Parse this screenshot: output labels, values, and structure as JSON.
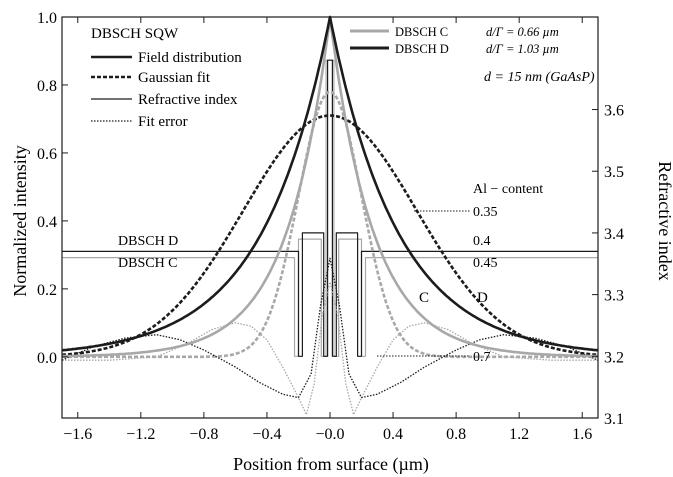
{
  "chart_data": {
    "type": "line",
    "title": "",
    "xlabel": "Position from surface (µm)",
    "ylabel": "Normalized intensity",
    "y2label": "Refractive index",
    "xlim": [
      -1.7,
      1.7
    ],
    "ylim": [
      -0.18,
      1.0
    ],
    "y2lim": [
      3.1,
      3.75
    ],
    "xticks": [
      -1.6,
      -1.2,
      -0.8,
      -0.4,
      0.0,
      0.4,
      0.8,
      1.2,
      1.6
    ],
    "xtick_labels": [
      "−1.6",
      "−1.2",
      "−0.8",
      "−0.4",
      "−0.0",
      "0.4",
      "0.8",
      "1.2",
      "1.6"
    ],
    "yticks": [
      0.0,
      0.2,
      0.4,
      0.6,
      0.8,
      1.0
    ],
    "ytick_labels": [
      "0.0",
      "0.2",
      "0.4",
      "0.6",
      "0.8",
      "1.0"
    ],
    "y2ticks": [
      3.1,
      3.2,
      3.3,
      3.4,
      3.5,
      3.6
    ],
    "y2tick_labels": [
      "3.1",
      "3.2",
      "3.3",
      "3.4",
      "3.5",
      "3.6"
    ],
    "grid": false,
    "colors": {
      "C": "#a8a8a8",
      "D": "#1c1c1c"
    },
    "series": [
      {
        "name": "DBSCH C",
        "kind": "field",
        "color_key": "C",
        "decay_um": 0.275,
        "peak": 1.0,
        "x_range": [
          -1.7,
          1.7
        ]
      },
      {
        "name": "DBSCH D",
        "kind": "field",
        "color_key": "D",
        "decay_um": 0.43,
        "peak": 1.0,
        "x_range": [
          -1.7,
          1.7
        ]
      },
      {
        "name": "DBSCH C",
        "kind": "gaussian_fit",
        "color_key": "C",
        "amplitude": 0.78,
        "sigma_um": 0.2,
        "x_range": [
          -1.7,
          1.7
        ]
      },
      {
        "name": "DBSCH D",
        "kind": "gaussian_fit",
        "color_key": "D",
        "amplitude": 0.71,
        "sigma_um": 0.55,
        "x_range": [
          -1.7,
          1.7
        ]
      },
      {
        "name": "DBSCH C",
        "kind": "fit_error",
        "color_key": "C",
        "points": [
          [
            -1.7,
            -0.01
          ],
          [
            -1.4,
            -0.01
          ],
          [
            -1.1,
            0.0
          ],
          [
            -0.9,
            0.04
          ],
          [
            -0.75,
            0.08
          ],
          [
            -0.6,
            0.1
          ],
          [
            -0.5,
            0.09
          ],
          [
            -0.4,
            0.05
          ],
          [
            -0.3,
            -0.03
          ],
          [
            -0.2,
            -0.12
          ],
          [
            -0.15,
            -0.17
          ],
          [
            -0.1,
            -0.08
          ],
          [
            -0.05,
            0.12
          ],
          [
            0.0,
            0.22
          ],
          [
            0.05,
            0.12
          ],
          [
            0.1,
            -0.08
          ],
          [
            0.15,
            -0.17
          ],
          [
            0.2,
            -0.12
          ],
          [
            0.3,
            -0.03
          ],
          [
            0.4,
            0.05
          ],
          [
            0.5,
            0.09
          ],
          [
            0.6,
            0.1
          ],
          [
            0.75,
            0.08
          ],
          [
            0.9,
            0.04
          ],
          [
            1.1,
            0.0
          ],
          [
            1.4,
            -0.01
          ],
          [
            1.7,
            -0.01
          ]
        ]
      },
      {
        "name": "DBSCH D",
        "kind": "fit_error",
        "color_key": "D",
        "points": [
          [
            -1.7,
            -0.01
          ],
          [
            -1.5,
            0.03
          ],
          [
            -1.3,
            0.055
          ],
          [
            -1.1,
            0.065
          ],
          [
            -0.95,
            0.05
          ],
          [
            -0.8,
            0.02
          ],
          [
            -0.6,
            -0.03
          ],
          [
            -0.45,
            -0.075
          ],
          [
            -0.3,
            -0.11
          ],
          [
            -0.2,
            -0.12
          ],
          [
            -0.12,
            -0.05
          ],
          [
            -0.06,
            0.15
          ],
          [
            0.0,
            0.29
          ],
          [
            0.06,
            0.15
          ],
          [
            0.12,
            -0.05
          ],
          [
            0.2,
            -0.12
          ],
          [
            0.3,
            -0.11
          ],
          [
            0.45,
            -0.075
          ],
          [
            0.6,
            -0.03
          ],
          [
            0.8,
            0.02
          ],
          [
            0.95,
            0.05
          ],
          [
            1.1,
            0.065
          ],
          [
            1.3,
            0.055
          ],
          [
            1.5,
            0.03
          ],
          [
            1.7,
            -0.01
          ]
        ]
      },
      {
        "name": "DBSCH C",
        "kind": "refractive_index",
        "color_key": "C",
        "points": [
          [
            -1.7,
            3.36
          ],
          [
            -0.225,
            3.36
          ],
          [
            -0.225,
            3.2
          ],
          [
            -0.2,
            3.2
          ],
          [
            -0.2,
            3.39
          ],
          [
            -0.055,
            3.39
          ],
          [
            -0.055,
            3.2
          ],
          [
            -0.025,
            3.2
          ],
          [
            -0.025,
            3.68
          ],
          [
            0.025,
            3.68
          ],
          [
            0.025,
            3.2
          ],
          [
            0.055,
            3.2
          ],
          [
            0.055,
            3.39
          ],
          [
            0.2,
            3.39
          ],
          [
            0.2,
            3.2
          ],
          [
            0.225,
            3.2
          ],
          [
            0.225,
            3.36
          ],
          [
            1.7,
            3.36
          ]
        ]
      },
      {
        "name": "DBSCH D",
        "kind": "refractive_index",
        "color_key": "D",
        "points": [
          [
            -1.7,
            3.37
          ],
          [
            -0.2,
            3.37
          ],
          [
            -0.2,
            3.2
          ],
          [
            -0.175,
            3.2
          ],
          [
            -0.175,
            3.4
          ],
          [
            -0.04,
            3.4
          ],
          [
            -0.04,
            3.2
          ],
          [
            -0.015,
            3.2
          ],
          [
            -0.015,
            3.68
          ],
          [
            0.015,
            3.68
          ],
          [
            0.015,
            3.2
          ],
          [
            0.04,
            3.2
          ],
          [
            0.04,
            3.4
          ],
          [
            0.175,
            3.4
          ],
          [
            0.175,
            3.2
          ],
          [
            0.2,
            3.2
          ],
          [
            0.2,
            3.37
          ],
          [
            1.7,
            3.37
          ]
        ]
      }
    ],
    "legend_style": {
      "title": "DBSCH  SQW",
      "entries": [
        {
          "label": "Field distribution",
          "style": "solid-thick"
        },
        {
          "label": "Gaussian fit",
          "style": "dashed-thick"
        },
        {
          "label": "Refractive index",
          "style": "solid-thin"
        },
        {
          "label": "Fit error",
          "style": "dotted-thin"
        }
      ]
    },
    "legend_structures": [
      {
        "name": "DBSCH  C",
        "param": "d/Γ = 0.66 µm",
        "color_key": "C"
      },
      {
        "name": "DBSCH  D",
        "param": "d/Γ = 1.03 µm",
        "color_key": "D"
      }
    ],
    "annotations": {
      "thickness": "d = 15 nm (GaAsP)",
      "al_content_title": "Al − content",
      "al_values": [
        {
          "text": "0.35",
          "leader": true
        },
        {
          "text": "0.4",
          "leader": false
        },
        {
          "text": "0.45",
          "leader": false
        },
        {
          "text": "0.7",
          "leader": true
        }
      ],
      "cladding_labels": [
        "DBSCH  D",
        "DBSCH  C"
      ],
      "curve_labels": [
        "C",
        "D"
      ]
    }
  }
}
